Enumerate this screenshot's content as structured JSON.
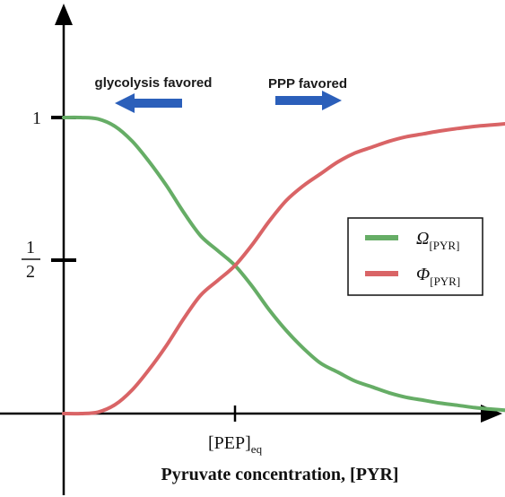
{
  "chart_data": {
    "type": "line",
    "xlabel": "Pyruvate concentration, [PYR]",
    "ylabel": "",
    "x_ticks": [
      {
        "label": "[PEP]",
        "sub": "eq",
        "x": 1.0
      }
    ],
    "y_ticks": [
      {
        "value": 1,
        "label": "1"
      },
      {
        "value": 0.5,
        "numerator": "1",
        "denominator": "2"
      }
    ],
    "xlim": [
      0,
      2.65
    ],
    "ylim": [
      0,
      1
    ],
    "grid": false,
    "legend_position": "right",
    "colors": {
      "omega": "#66ad66",
      "phi": "#d96466",
      "arrow": "#2b5fba",
      "axis": "#000000"
    },
    "annotations": [
      {
        "text": "glycolysis favored",
        "direction": "left"
      },
      {
        "text": "PPP favored",
        "direction": "right"
      }
    ],
    "series": [
      {
        "name": "Ω",
        "subscript": "[PYR]",
        "color": "#66ad66",
        "x": [
          0,
          0.1,
          0.2,
          0.3,
          0.4,
          0.5,
          0.6,
          0.7,
          0.8,
          0.9,
          1.0,
          1.1,
          1.2,
          1.3,
          1.4,
          1.5,
          1.6,
          1.7,
          1.8,
          1.9,
          2.0,
          2.1,
          2.2,
          2.3,
          2.4,
          2.5,
          2.6,
          2.65
        ],
        "y": [
          1.0,
          1.0,
          0.995,
          0.97,
          0.92,
          0.85,
          0.77,
          0.68,
          0.6,
          0.55,
          0.5,
          0.43,
          0.35,
          0.28,
          0.22,
          0.17,
          0.14,
          0.11,
          0.09,
          0.07,
          0.055,
          0.045,
          0.035,
          0.028,
          0.02,
          0.015,
          0.01,
          0.008
        ]
      },
      {
        "name": "Φ",
        "subscript": "[PYR]",
        "color": "#d96466",
        "x": [
          0,
          0.1,
          0.2,
          0.3,
          0.4,
          0.5,
          0.6,
          0.7,
          0.8,
          0.9,
          1.0,
          1.1,
          1.2,
          1.3,
          1.4,
          1.5,
          1.6,
          1.7,
          1.8,
          1.9,
          2.0,
          2.1,
          2.2,
          2.3,
          2.4,
          2.5,
          2.6,
          2.65
        ],
        "y": [
          0.0,
          0.0,
          0.005,
          0.03,
          0.08,
          0.15,
          0.23,
          0.32,
          0.4,
          0.45,
          0.5,
          0.57,
          0.65,
          0.72,
          0.77,
          0.81,
          0.85,
          0.88,
          0.9,
          0.92,
          0.935,
          0.945,
          0.955,
          0.963,
          0.97,
          0.975,
          0.98,
          0.982
        ]
      }
    ]
  }
}
